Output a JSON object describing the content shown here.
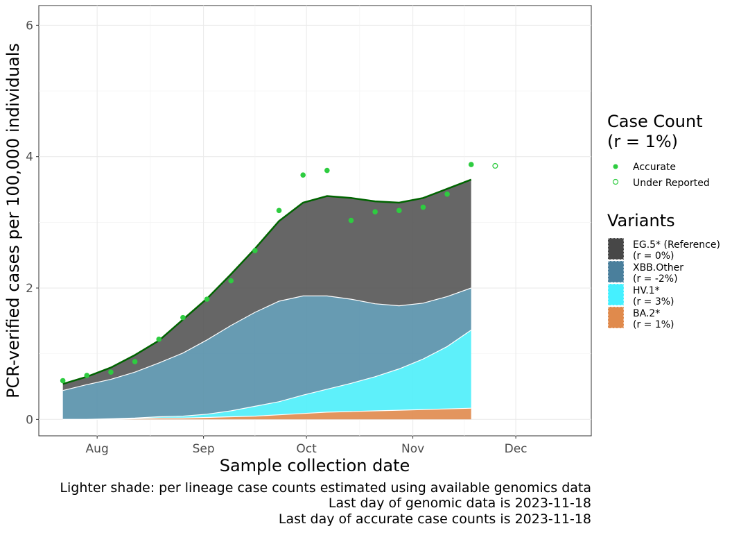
{
  "chart_data": {
    "type": "area",
    "xlabel": "Sample collection date",
    "ylabel": "PCR-verified cases per 100,000 individuals",
    "xlim": [
      "2023-07-15",
      "2023-12-23"
    ],
    "ylim": [
      -0.25,
      6.3
    ],
    "y_ticks": [
      0,
      2,
      4,
      6
    ],
    "x_ticks": [
      {
        "date": "2023-08-01",
        "label": "Aug"
      },
      {
        "date": "2023-09-01",
        "label": "Sep"
      },
      {
        "date": "2023-10-01",
        "label": "Oct"
      },
      {
        "date": "2023-11-01",
        "label": "Nov"
      },
      {
        "date": "2023-12-01",
        "label": "Dec"
      }
    ],
    "grid": true,
    "dates": [
      "2023-07-22",
      "2023-07-29",
      "2023-08-05",
      "2023-08-12",
      "2023-08-19",
      "2023-08-26",
      "2023-09-02",
      "2023-09-09",
      "2023-09-16",
      "2023-09-23",
      "2023-09-30",
      "2023-10-07",
      "2023-10-14",
      "2023-10-21",
      "2023-10-28",
      "2023-11-04",
      "2023-11-11",
      "2023-11-18"
    ],
    "series": [
      {
        "name": "BA.2*",
        "color": "#e08a4c",
        "values": [
          0.0,
          0.0,
          0.0,
          0.01,
          0.02,
          0.02,
          0.03,
          0.04,
          0.05,
          0.07,
          0.09,
          0.11,
          0.12,
          0.13,
          0.14,
          0.15,
          0.16,
          0.17
        ]
      },
      {
        "name": "HV.1*",
        "color": "#4deefa",
        "values": [
          0.0,
          0.0,
          0.01,
          0.01,
          0.02,
          0.03,
          0.05,
          0.09,
          0.15,
          0.2,
          0.28,
          0.35,
          0.43,
          0.52,
          0.63,
          0.77,
          0.95,
          1.19
        ]
      },
      {
        "name": "XBB.Other",
        "color": "#5690aa",
        "values": [
          0.44,
          0.53,
          0.6,
          0.7,
          0.82,
          0.96,
          1.13,
          1.3,
          1.43,
          1.53,
          1.51,
          1.42,
          1.28,
          1.11,
          0.96,
          0.85,
          0.76,
          0.64
        ]
      },
      {
        "name": "EG.5* (Reference)",
        "color": "#555555",
        "values": [
          0.1,
          0.12,
          0.18,
          0.26,
          0.34,
          0.51,
          0.63,
          0.78,
          0.97,
          1.22,
          1.42,
          1.52,
          1.54,
          1.56,
          1.57,
          1.6,
          1.64,
          1.65
        ]
      }
    ],
    "total_line_color": "#006400",
    "points": {
      "color": "#2ecc40",
      "accurate": [
        {
          "date": "2023-07-22",
          "y": 0.59
        },
        {
          "date": "2023-07-29",
          "y": 0.67
        },
        {
          "date": "2023-08-05",
          "y": 0.72
        },
        {
          "date": "2023-08-12",
          "y": 0.88
        },
        {
          "date": "2023-08-19",
          "y": 1.22
        },
        {
          "date": "2023-08-26",
          "y": 1.55
        },
        {
          "date": "2023-09-02",
          "y": 1.83
        },
        {
          "date": "2023-09-09",
          "y": 2.11
        },
        {
          "date": "2023-09-16",
          "y": 2.57
        },
        {
          "date": "2023-09-23",
          "y": 3.18
        },
        {
          "date": "2023-09-30",
          "y": 3.72
        },
        {
          "date": "2023-10-07",
          "y": 3.79
        },
        {
          "date": "2023-10-14",
          "y": 3.03
        },
        {
          "date": "2023-10-21",
          "y": 3.16
        },
        {
          "date": "2023-10-28",
          "y": 3.18
        },
        {
          "date": "2023-11-04",
          "y": 3.23
        },
        {
          "date": "2023-11-11",
          "y": 3.43
        },
        {
          "date": "2023-11-18",
          "y": 3.88
        }
      ],
      "under_reported": [
        {
          "date": "2023-11-25",
          "y": 3.86
        }
      ]
    },
    "legend": {
      "case_count_title_line1": "Case Count",
      "case_count_title_line2": "(r = 1%)",
      "accurate_label": "Accurate",
      "under_reported_label": "Under Reported",
      "variants_title": "Variants",
      "variants": [
        {
          "name": "EG.5* (Reference)",
          "rate": "(r = 0%)",
          "color": "#474747"
        },
        {
          "name": "XBB.Other",
          "rate": "(r = -2%)",
          "color": "#4a7f9c"
        },
        {
          "name": "HV.1*",
          "rate": "(r = 3%)",
          "color": "#45f0ff"
        },
        {
          "name": "BA.2*",
          "rate": "(r = 1%)",
          "color": "#e08a4c"
        }
      ]
    },
    "captions": [
      "Lighter shade: per lineage case counts estimated using available genomics data",
      "Last day of genomic data is 2023-11-18",
      "Last day of accurate case counts is 2023-11-18"
    ]
  }
}
